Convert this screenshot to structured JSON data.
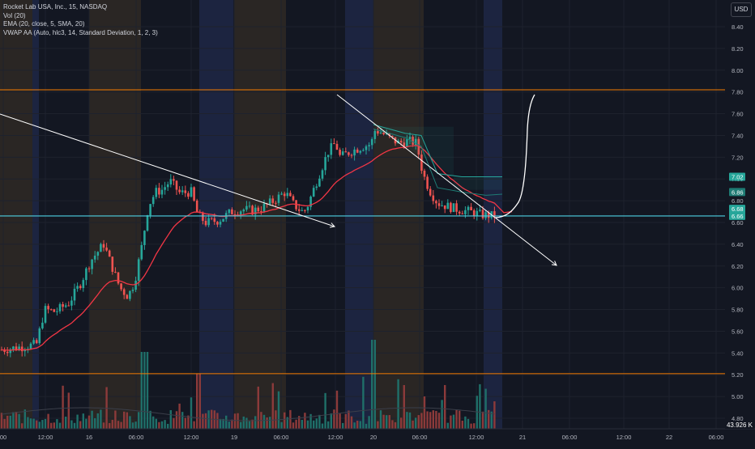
{
  "legend": {
    "line1": "Rocket Lab USA, Inc., 15, NASDAQ",
    "line2": "Vol (20)",
    "line3": "EMA (20, close, 5, SMA, 20)",
    "line4": "VWAP AA (Auto, hlc3, 14, Standard Deviation, 1, 2, 3)"
  },
  "currency": "USD",
  "volume_value_label": "43.926 K",
  "colors": {
    "background": "#131722",
    "up": "#26a69a",
    "down": "#ef5350",
    "ema": "#f23645",
    "horizontal_orange": "#f57c00",
    "horizontal_cyan": "#4dd0e1",
    "trendline": "#ffffff",
    "session_orange": "#2a2624",
    "session_blue": "#1c2440"
  },
  "chart_data": {
    "type": "candlestick",
    "price_axis": {
      "ticks": [
        "8.40",
        "8.20",
        "8.00",
        "7.80",
        "7.60",
        "7.40",
        "7.20",
        "7.00",
        "6.80",
        "6.60",
        "6.40",
        "6.20",
        "6.00",
        "5.80",
        "5.60",
        "5.40",
        "5.20",
        "5.00",
        "4.80"
      ],
      "range": [
        4.72,
        8.56
      ]
    },
    "price_labels": [
      {
        "text": "7.02",
        "value": 7.02,
        "color": "#26a69a"
      },
      {
        "text": "6.86",
        "value": 6.86,
        "color": "#1e7b74"
      },
      {
        "text": "6.71",
        "value": 6.71,
        "color": "#ef5350"
      },
      {
        "text": "6.68",
        "value": 6.68,
        "color": "#26a69a"
      },
      {
        "text": "6.66",
        "value": 6.66,
        "color": "#26a69a"
      }
    ],
    "time_axis": [
      "00",
      "12:00",
      "16",
      "06:00",
      "12:00",
      "19",
      "06:00",
      "12:00",
      "20",
      "06:00",
      "12:00",
      "21",
      "06:00",
      "12:00",
      "22",
      "06:00"
    ],
    "horizontal_levels": [
      7.82,
      6.66,
      5.21
    ],
    "candles_count": 170,
    "key_prices": {
      "start": 5.4,
      "low_day1": 5.35,
      "peak_day1": 7.08,
      "peak_day3": 7.5,
      "last": 6.66,
      "projection_target": 7.8
    }
  }
}
